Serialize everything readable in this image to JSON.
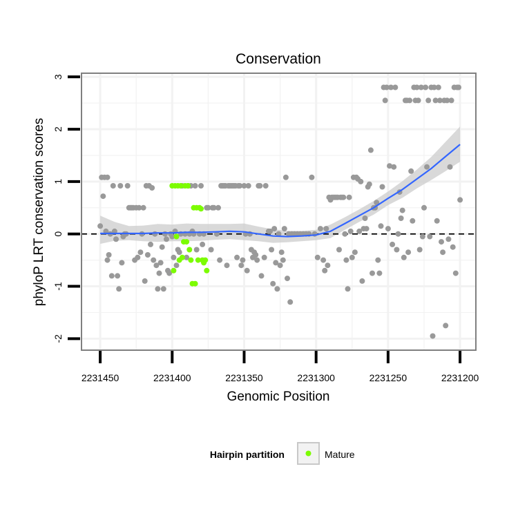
{
  "chart_data": {
    "type": "scatter",
    "title": "Conservation",
    "xlabel": "Genomic Position",
    "ylabel": "phyloP LRT conservation scores",
    "x_reversed": true,
    "xlim": [
      2231463,
      2231189
    ],
    "ylim": [
      -2.22,
      3.07
    ],
    "x_ticks": [
      2231450,
      2231400,
      2231350,
      2231300,
      2231250,
      2231200
    ],
    "x_tick_labels": [
      "2231450",
      "2231400",
      "2231350",
      "2231300",
      "2231250",
      "2231200"
    ],
    "y_ticks": [
      -2,
      -1,
      0,
      1,
      2,
      3
    ],
    "y_tick_labels": [
      "-2",
      "-1",
      "0",
      "1",
      "2",
      "3"
    ],
    "grid": true,
    "reference_line": {
      "y": 0,
      "style": "dashed"
    },
    "legend": {
      "title": "Hairpin partition",
      "entries": [
        "Mature"
      ],
      "placement": "bottom"
    },
    "colors": {
      "other": "#999999",
      "mature": "#7cfc00",
      "smooth": "#3366ff",
      "band": "#cccccc",
      "panel_border": "#7f7f7f",
      "grid": "#f2f2f2"
    },
    "series": [
      {
        "name": "Other",
        "points": [
          [
            2231450,
            0.15
          ],
          [
            2231449,
            1.08
          ],
          [
            2231448,
            0.72
          ],
          [
            2231447,
            1.08
          ],
          [
            2231446,
            0.05
          ],
          [
            2231445,
            1.08
          ],
          [
            2231445,
            -0.5
          ],
          [
            2231444,
            -0.4
          ],
          [
            2231443,
            0.0
          ],
          [
            2231442,
            -0.8
          ],
          [
            2231441,
            0.92
          ],
          [
            2231440,
            0.05
          ],
          [
            2231439,
            -0.1
          ],
          [
            2231438,
            -0.8
          ],
          [
            2231437,
            -1.05
          ],
          [
            2231436,
            0.92
          ],
          [
            2231435,
            -0.55
          ],
          [
            2231434,
            -0.05
          ],
          [
            2231433,
            0.0
          ],
          [
            2231432,
            0.0
          ],
          [
            2231431,
            0.92
          ],
          [
            2231430,
            0.5
          ],
          [
            2231429,
            0.5
          ],
          [
            2231428,
            0.5
          ],
          [
            2231427,
            0.5
          ],
          [
            2231426,
            -0.5
          ],
          [
            2231425,
            0.5
          ],
          [
            2231424,
            -0.45
          ],
          [
            2231423,
            0.5
          ],
          [
            2231422,
            -0.35
          ],
          [
            2231421,
            0.0
          ],
          [
            2231420,
            0.5
          ],
          [
            2231419,
            -0.9
          ],
          [
            2231418,
            0.92
          ],
          [
            2231417,
            -0.4
          ],
          [
            2231416,
            0.92
          ],
          [
            2231415,
            -0.2
          ],
          [
            2231414,
            0.88
          ],
          [
            2231413,
            -0.5
          ],
          [
            2231412,
            0.0
          ],
          [
            2231411,
            -0.6
          ],
          [
            2231410,
            -1.05
          ],
          [
            2231409,
            -0.75
          ],
          [
            2231408,
            -0.55
          ],
          [
            2231407,
            -0.25
          ],
          [
            2231406,
            -1.05
          ],
          [
            2231405,
            0.0
          ],
          [
            2231404,
            -0.1
          ],
          [
            2231403,
            -0.7
          ],
          [
            2231402,
            -0.75
          ],
          [
            2231401,
            0.0
          ],
          [
            2231400,
            -0.05
          ],
          [
            2231399,
            -0.45
          ],
          [
            2231398,
            0.05
          ],
          [
            2231397,
            -0.6
          ],
          [
            2231396,
            -0.3
          ],
          [
            2231395,
            -0.35
          ],
          [
            2231394,
            0.0
          ],
          [
            2231393,
            0.92
          ],
          [
            2231391,
            0.0
          ],
          [
            2231390,
            -0.45
          ],
          [
            2231389,
            0.92
          ],
          [
            2231388,
            0.0
          ],
          [
            2231387,
            0.92
          ],
          [
            2231386,
            0.05
          ],
          [
            2231385,
            0.0
          ],
          [
            2231384,
            0.92
          ],
          [
            2231383,
            -0.3
          ],
          [
            2231381,
            0.0
          ],
          [
            2231380,
            0.92
          ],
          [
            2231379,
            -0.2
          ],
          [
            2231378,
            0.0
          ],
          [
            2231376,
            0.5
          ],
          [
            2231375,
            0.5
          ],
          [
            2231373,
            -0.3
          ],
          [
            2231372,
            0.5
          ],
          [
            2231371,
            0.5
          ],
          [
            2231369,
            0.0
          ],
          [
            2231368,
            0.5
          ],
          [
            2231367,
            -0.5
          ],
          [
            2231366,
            0.92
          ],
          [
            2231365,
            0.92
          ],
          [
            2231364,
            0.92
          ],
          [
            2231363,
            0.92
          ],
          [
            2231362,
            -0.6
          ],
          [
            2231361,
            0.92
          ],
          [
            2231360,
            0.92
          ],
          [
            2231359,
            0.92
          ],
          [
            2231358,
            0.92
          ],
          [
            2231357,
            0.92
          ],
          [
            2231356,
            0.92
          ],
          [
            2231355,
            -0.45
          ],
          [
            2231354,
            0.92
          ],
          [
            2231353,
            0.92
          ],
          [
            2231352,
            -0.6
          ],
          [
            2231351,
            -0.5
          ],
          [
            2231350,
            0.92
          ],
          [
            2231349,
            0.0
          ],
          [
            2231348,
            -0.7
          ],
          [
            2231347,
            0.92
          ],
          [
            2231346,
            0.0
          ],
          [
            2231345,
            -0.3
          ],
          [
            2231344,
            -0.45
          ],
          [
            2231343,
            -0.35
          ],
          [
            2231342,
            -0.4
          ],
          [
            2231341,
            -0.5
          ],
          [
            2231340,
            0.92
          ],
          [
            2231339,
            0.92
          ],
          [
            2231338,
            -0.8
          ],
          [
            2231336,
            -0.45
          ],
          [
            2231335,
            0.92
          ],
          [
            2231333,
            0.05
          ],
          [
            2231332,
            0.05
          ],
          [
            2231331,
            -0.3
          ],
          [
            2231330,
            -0.95
          ],
          [
            2231329,
            0.1
          ],
          [
            2231328,
            -0.55
          ],
          [
            2231327,
            -1.05
          ],
          [
            2231326,
            0.0
          ],
          [
            2231325,
            -0.6
          ],
          [
            2231324,
            -0.35
          ],
          [
            2231323,
            -0.5
          ],
          [
            2231322,
            0.1
          ],
          [
            2231321,
            1.08
          ],
          [
            2231320,
            -0.85
          ],
          [
            2231319,
            0.0
          ],
          [
            2231318,
            -1.3
          ],
          [
            2231317,
            0.0
          ],
          [
            2231315,
            0.0
          ],
          [
            2231313,
            0.0
          ],
          [
            2231311,
            0.0
          ],
          [
            2231309,
            0.0
          ],
          [
            2231307,
            0.0
          ],
          [
            2231305,
            0.0
          ],
          [
            2231303,
            1.08
          ],
          [
            2231301,
            0.0
          ],
          [
            2231299,
            -0.45
          ],
          [
            2231297,
            0.1
          ],
          [
            2231295,
            -0.5
          ],
          [
            2231294,
            -0.7
          ],
          [
            2231293,
            0.1
          ],
          [
            2231292,
            -0.6
          ],
          [
            2231291,
            0.7
          ],
          [
            2231290,
            0.65
          ],
          [
            2231289,
            0.7
          ],
          [
            2231288,
            0.7
          ],
          [
            2231287,
            0.7
          ],
          [
            2231286,
            0.7
          ],
          [
            2231285,
            0.7
          ],
          [
            2231284,
            -0.3
          ],
          [
            2231283,
            0.7
          ],
          [
            2231282,
            0.7
          ],
          [
            2231281,
            0.7
          ],
          [
            2231280,
            0.0
          ],
          [
            2231279,
            -0.5
          ],
          [
            2231278,
            -1.05
          ],
          [
            2231277,
            0.7
          ],
          [
            2231276,
            0.05
          ],
          [
            2231275,
            -0.45
          ],
          [
            2231274,
            1.08
          ],
          [
            2231273,
            -0.35
          ],
          [
            2231272,
            1.08
          ],
          [
            2231271,
            1.05
          ],
          [
            2231270,
            0.05
          ],
          [
            2231269,
            1.0
          ],
          [
            2231268,
            -0.9
          ],
          [
            2231267,
            0.1
          ],
          [
            2231266,
            0.3
          ],
          [
            2231265,
            0.1
          ],
          [
            2231264,
            0.9
          ],
          [
            2231263,
            0.95
          ],
          [
            2231262,
            1.6
          ],
          [
            2231261,
            -0.75
          ],
          [
            2231260,
            0.5
          ],
          [
            2231259,
            0.5
          ],
          [
            2231258,
            0.6
          ],
          [
            2231257,
            -0.5
          ],
          [
            2231256,
            -0.75
          ],
          [
            2231255,
            0.15
          ],
          [
            2231254,
            0.9
          ],
          [
            2231253,
            2.8
          ],
          [
            2231252,
            2.55
          ],
          [
            2231251,
            2.8
          ],
          [
            2231250,
            0.1
          ],
          [
            2231249,
            1.3
          ],
          [
            2231248,
            2.8
          ],
          [
            2231247,
            -0.2
          ],
          [
            2231246,
            1.28
          ],
          [
            2231245,
            2.8
          ],
          [
            2231244,
            -0.3
          ],
          [
            2231243,
            0.0
          ],
          [
            2231242,
            0.8
          ],
          [
            2231241,
            0.3
          ],
          [
            2231240,
            0.45
          ],
          [
            2231239,
            -0.45
          ],
          [
            2231238,
            2.55
          ],
          [
            2231237,
            2.55
          ],
          [
            2231236,
            -0.35
          ],
          [
            2231235,
            2.55
          ],
          [
            2231234,
            1.2
          ],
          [
            2231233,
            0.25
          ],
          [
            2231232,
            2.8
          ],
          [
            2231231,
            2.55
          ],
          [
            2231230,
            2.8
          ],
          [
            2231229,
            2.55
          ],
          [
            2231228,
            -0.3
          ],
          [
            2231227,
            2.8
          ],
          [
            2231226,
            -0.05
          ],
          [
            2231225,
            0.5
          ],
          [
            2231224,
            2.8
          ],
          [
            2231223,
            1.28
          ],
          [
            2231222,
            2.55
          ],
          [
            2231221,
            -0.05
          ],
          [
            2231220,
            2.8
          ],
          [
            2231219,
            -1.95
          ],
          [
            2231218,
            2.8
          ],
          [
            2231217,
            2.55
          ],
          [
            2231216,
            0.25
          ],
          [
            2231215,
            2.8
          ],
          [
            2231214,
            2.55
          ],
          [
            2231213,
            -0.15
          ],
          [
            2231212,
            -0.35
          ],
          [
            2231211,
            2.55
          ],
          [
            2231210,
            -1.75
          ],
          [
            2231209,
            2.55
          ],
          [
            2231208,
            -0.1
          ],
          [
            2231207,
            1.28
          ],
          [
            2231206,
            2.55
          ],
          [
            2231205,
            -0.25
          ],
          [
            2231204,
            2.8
          ],
          [
            2231203,
            -0.75
          ],
          [
            2231202,
            2.8
          ],
          [
            2231201,
            2.8
          ],
          [
            2231200,
            0.65
          ]
        ]
      },
      {
        "name": "Mature",
        "points": [
          [
            2231400,
            0.92
          ],
          [
            2231399,
            -0.7
          ],
          [
            2231398,
            0.92
          ],
          [
            2231397,
            -0.05
          ],
          [
            2231396,
            0.92
          ],
          [
            2231395,
            -0.5
          ],
          [
            2231394,
            0.92
          ],
          [
            2231393,
            -0.45
          ],
          [
            2231392,
            -0.15
          ],
          [
            2231391,
            0.92
          ],
          [
            2231390,
            -0.15
          ],
          [
            2231389,
            0.92
          ],
          [
            2231388,
            -0.3
          ],
          [
            2231387,
            -0.5
          ],
          [
            2231386,
            -0.95
          ],
          [
            2231385,
            0.5
          ],
          [
            2231384,
            -0.95
          ],
          [
            2231383,
            0.5
          ],
          [
            2231382,
            -0.5
          ],
          [
            2231381,
            0.5
          ],
          [
            2231380,
            0.48
          ],
          [
            2231379,
            -0.5
          ],
          [
            2231378,
            -0.55
          ],
          [
            2231377,
            -0.5
          ],
          [
            2231376,
            -0.7
          ]
        ]
      }
    ],
    "smooth": {
      "name": "loess",
      "x": [
        2231450,
        2231440,
        2231430,
        2231420,
        2231410,
        2231400,
        2231390,
        2231380,
        2231370,
        2231360,
        2231350,
        2231340,
        2231330,
        2231320,
        2231310,
        2231300,
        2231290,
        2231280,
        2231270,
        2231260,
        2231250,
        2231240,
        2231230,
        2231220,
        2231210,
        2231200
      ],
      "y": [
        0.01,
        0.01,
        0.01,
        0.01,
        0.02,
        0.02,
        0.03,
        0.03,
        0.04,
        0.05,
        0.04,
        0.0,
        -0.04,
        -0.05,
        -0.04,
        -0.02,
        0.05,
        0.2,
        0.35,
        0.5,
        0.68,
        0.85,
        1.05,
        1.25,
        1.48,
        1.71
      ],
      "lower": [
        -0.19,
        -0.13,
        -0.12,
        -0.14,
        -0.15,
        -0.14,
        -0.14,
        -0.13,
        -0.11,
        -0.1,
        -0.12,
        -0.14,
        -0.17,
        -0.16,
        -0.14,
        -0.12,
        -0.08,
        0.08,
        0.23,
        0.37,
        0.55,
        0.69,
        0.87,
        1.03,
        1.2,
        1.38
      ],
      "upper": [
        0.35,
        0.23,
        0.15,
        0.16,
        0.19,
        0.18,
        0.2,
        0.19,
        0.19,
        0.19,
        0.2,
        0.14,
        0.09,
        0.06,
        0.06,
        0.08,
        0.18,
        0.32,
        0.47,
        0.63,
        0.81,
        1.01,
        1.23,
        1.47,
        1.76,
        2.05
      ]
    }
  }
}
